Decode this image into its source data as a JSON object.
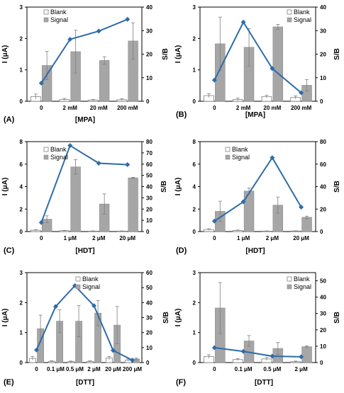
{
  "figure": {
    "legend_blank": "Blank",
    "legend_signal": "Signal"
  },
  "colors": {
    "blank_bar": "#ffffff",
    "signal_bar": "#a6a6a6",
    "sb_line": "#2e6ca8",
    "error_bar": "#7f7f7f"
  },
  "chart_data": [
    {
      "type": "bar",
      "panel_label": "(A)",
      "xlabel": "[MPA]",
      "ylabel_left": "I (μA)",
      "ylabel_right": "S/B",
      "categories": [
        "0",
        "2 mM",
        "20 mM",
        "200 mM"
      ],
      "ylim_left": [
        0,
        3
      ],
      "yticks_left": [
        "0",
        "1",
        "2",
        "3"
      ],
      "ylim_right": [
        0,
        40
      ],
      "yticks_right": [
        "0",
        "10",
        "20",
        "30",
        "40"
      ],
      "legend_position": "top-left",
      "series": [
        {
          "name": "Blank",
          "axis": "left",
          "values": [
            0.15,
            0.06,
            0.04,
            0.05
          ],
          "errors": [
            0.08,
            0.03,
            0.02,
            0.03
          ]
        },
        {
          "name": "Signal",
          "axis": "left",
          "values": [
            1.14,
            1.58,
            1.3,
            1.92
          ],
          "errors": [
            0.45,
            0.68,
            0.12,
            0.58
          ]
        },
        {
          "axis": "right",
          "style": "line",
          "values": [
            7.7,
            26.3,
            29.8,
            34.8
          ]
        }
      ]
    },
    {
      "type": "bar",
      "panel_label": "(B)",
      "xlabel": "[MPA]",
      "ylabel_left": "I (μA)",
      "ylabel_right": "S/B",
      "categories": [
        "0",
        "2 mM",
        "20 mM",
        "200 mM"
      ],
      "ylim_left": [
        0,
        3
      ],
      "yticks_left": [
        "0",
        "1",
        "2",
        "3"
      ],
      "ylim_right": [
        0,
        40
      ],
      "yticks_right": [
        "0",
        "10",
        "20",
        "30",
        "40"
      ],
      "legend_position": "top-right",
      "series": [
        {
          "name": "Blank",
          "axis": "left",
          "values": [
            0.18,
            0.06,
            0.15,
            0.12
          ],
          "errors": [
            0.06,
            0.04,
            0.04,
            0.05
          ]
        },
        {
          "name": "Signal",
          "axis": "left",
          "values": [
            1.83,
            1.72,
            2.37,
            0.51
          ],
          "errors": [
            0.85,
            0.6,
            0.08,
            0.18
          ]
        },
        {
          "axis": "right",
          "style": "line",
          "values": [
            9.0,
            33.6,
            13.9,
            3.6
          ]
        }
      ]
    },
    {
      "type": "bar",
      "panel_label": "(C)",
      "xlabel": "[HDT]",
      "ylabel_left": "I (μA)",
      "ylabel_right": "S/B",
      "categories": [
        "0",
        "1 μM",
        "2 μM",
        "20 μM"
      ],
      "ylim_left": [
        0,
        8
      ],
      "yticks_left": [
        "0",
        "2",
        "4",
        "6",
        "8"
      ],
      "ylim_right": [
        0,
        80
      ],
      "yticks_right": [
        "0",
        "10",
        "20",
        "30",
        "40",
        "50",
        "60",
        "70",
        "80"
      ],
      "legend_position": "top-left",
      "series": [
        {
          "name": "Blank",
          "axis": "left",
          "values": [
            0.12,
            0.08,
            0.04,
            0.04
          ],
          "errors": [
            0.05,
            0.03,
            0.02,
            0.02
          ]
        },
        {
          "name": "Signal",
          "axis": "left",
          "values": [
            1.1,
            5.75,
            2.45,
            4.78
          ],
          "errors": [
            0.3,
            0.65,
            0.9,
            0.05
          ]
        },
        {
          "axis": "right",
          "style": "line",
          "values": [
            8.0,
            76.5,
            60.8,
            59.5
          ]
        }
      ]
    },
    {
      "type": "bar",
      "panel_label": "(D)",
      "xlabel": "[HDT]",
      "ylabel_left": "I (μA)",
      "ylabel_right": "S/B",
      "categories": [
        "0",
        "1 μM",
        "2 μM",
        "20 μM"
      ],
      "ylim_left": [
        0,
        8
      ],
      "yticks_left": [
        "0",
        "2",
        "4",
        "6",
        "8"
      ],
      "ylim_right": [
        0,
        80
      ],
      "yticks_right": [
        "0",
        "20",
        "40",
        "60",
        "80"
      ],
      "legend_position": "top-left",
      "series": [
        {
          "name": "Blank",
          "axis": "left",
          "values": [
            0.18,
            0.1,
            0.04,
            0.05
          ],
          "errors": [
            0.07,
            0.04,
            0.02,
            0.02
          ]
        },
        {
          "name": "Signal",
          "axis": "left",
          "values": [
            1.8,
            3.6,
            2.35,
            1.27
          ],
          "errors": [
            0.9,
            0.28,
            0.72,
            0.1
          ]
        },
        {
          "axis": "right",
          "style": "line",
          "values": [
            9.3,
            26.5,
            65.7,
            21.7
          ]
        }
      ]
    },
    {
      "type": "bar",
      "panel_label": "(E)",
      "xlabel": "[DTT]",
      "ylabel_left": "I (μA)",
      "ylabel_right": "S/B",
      "categories": [
        "0",
        "0.1 μM",
        "0.5 μM",
        "2 μM",
        "20 μM",
        "200 μM"
      ],
      "ylim_left": [
        0,
        3
      ],
      "yticks_left": [
        "0",
        "1",
        "2",
        "3"
      ],
      "ylim_right": [
        0,
        60
      ],
      "yticks_right": [
        "0",
        "10",
        "20",
        "30",
        "40",
        "50",
        "60"
      ],
      "legend_position": "top-center",
      "series": [
        {
          "name": "Blank",
          "axis": "left",
          "values": [
            0.14,
            0.04,
            0.03,
            0.04,
            0.15,
            0.08
          ],
          "errors": [
            0.06,
            0.02,
            0.02,
            0.02,
            0.05,
            0.04
          ]
        },
        {
          "name": "Signal",
          "axis": "left",
          "values": [
            1.13,
            1.38,
            1.38,
            1.65,
            1.25,
            0.12
          ],
          "errors": [
            0.45,
            0.38,
            0.52,
            0.42,
            0.62,
            0.03
          ]
        },
        {
          "axis": "right",
          "style": "line",
          "values": [
            8.4,
            37.4,
            51.3,
            37.9,
            8.1,
            1.6
          ]
        }
      ]
    },
    {
      "type": "bar",
      "panel_label": "(F)",
      "xlabel": "[DTT]",
      "ylabel_left": "I (μA)",
      "ylabel_right": "S/B",
      "categories": [
        "0",
        "0.1 μM",
        "0.5 μM",
        "2 μM"
      ],
      "ylim_left": [
        0,
        3
      ],
      "yticks_left": [
        "0",
        "1",
        "2",
        "3"
      ],
      "ylim_right": [
        0,
        55
      ],
      "yticks_right": [
        "0",
        "10",
        "20",
        "30",
        "40",
        "50"
      ],
      "legend_position": "top-right",
      "series": [
        {
          "name": "Blank",
          "axis": "left",
          "values": [
            0.2,
            0.1,
            0.12,
            0.03
          ],
          "errors": [
            0.06,
            0.03,
            0.05,
            0.02
          ]
        },
        {
          "name": "Signal",
          "axis": "left",
          "values": [
            1.82,
            0.72,
            0.47,
            0.53
          ],
          "errors": [
            0.85,
            0.18,
            0.2,
            0.03
          ]
        },
        {
          "axis": "right",
          "style": "line",
          "values": [
            9.1,
            6.8,
            3.9,
            3.5
          ]
        }
      ]
    }
  ]
}
